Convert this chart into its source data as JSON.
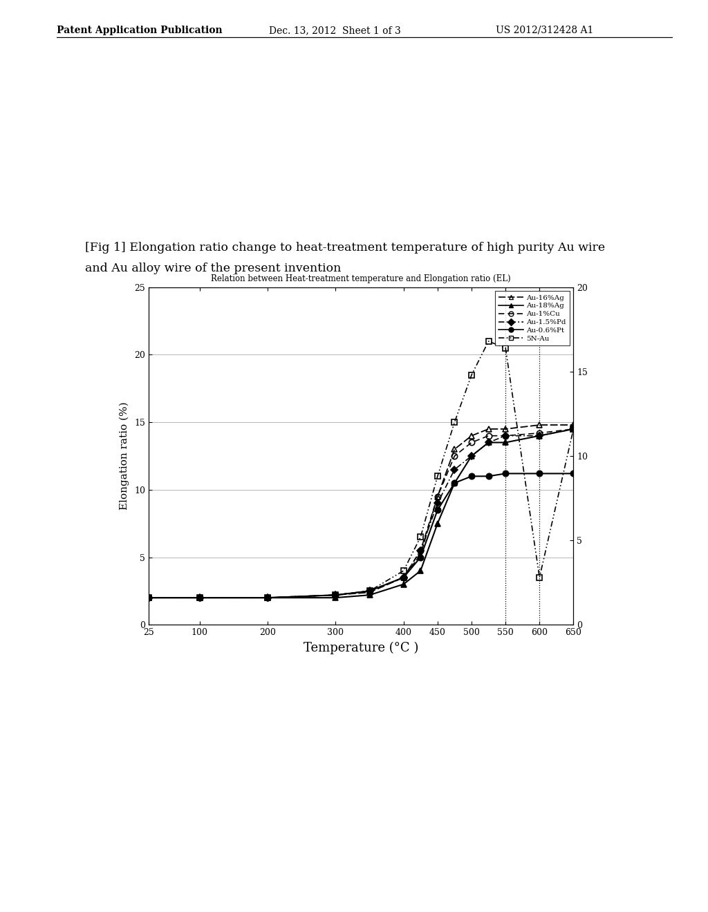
{
  "title": "Relation between Heat-treatment temperature and Elongation ratio (EL)",
  "xlabel": "Temperature (°C )",
  "ylabel": "Elongation ratio (%)",
  "fig_label_line1": "[Fig 1] Elongation ratio change to heat-treatment temperature of high purity Au wire",
  "fig_label_line2": "and Au alloy wire of the present invention",
  "header_left": "Patent Application Publication",
  "header_date": "Dec. 13, 2012  Sheet 1 of 3",
  "header_right": "US 2012/312428 A1",
  "xlim": [
    25,
    650
  ],
  "ylim_left": [
    0,
    25
  ],
  "ylim_right": [
    0,
    20
  ],
  "xticks": [
    25,
    100,
    200,
    300,
    400,
    450,
    500,
    550,
    600,
    650
  ],
  "yticks_left": [
    0,
    5,
    10,
    15,
    20,
    25
  ],
  "yticks_right": [
    0,
    5,
    10,
    15,
    20
  ],
  "vlines": [
    550,
    600
  ],
  "series": [
    {
      "label": "Au-16%Ag",
      "marker": "^",
      "fillstyle": "none",
      "linestyle_key": "solid_dash",
      "x": [
        25,
        100,
        200,
        300,
        350,
        400,
        425,
        450,
        475,
        500,
        525,
        550,
        600,
        650
      ],
      "y": [
        2.0,
        2.0,
        2.0,
        2.2,
        2.4,
        3.5,
        5.2,
        9.5,
        13.0,
        14.0,
        14.5,
        14.5,
        14.8,
        14.8
      ]
    },
    {
      "label": "Au-18%Ag",
      "marker": "^",
      "fillstyle": "full",
      "linestyle_key": "solid",
      "x": [
        25,
        100,
        200,
        300,
        350,
        400,
        425,
        450,
        475,
        500,
        525,
        550,
        600,
        650
      ],
      "y": [
        2.0,
        2.0,
        2.0,
        2.0,
        2.2,
        3.0,
        4.0,
        7.5,
        10.5,
        12.5,
        13.5,
        13.5,
        14.0,
        14.5
      ]
    },
    {
      "label": "Au-1%Cu",
      "marker": "o",
      "fillstyle": "none",
      "linestyle_key": "dashed",
      "x": [
        25,
        100,
        200,
        300,
        350,
        400,
        425,
        450,
        475,
        500,
        525,
        550,
        600,
        650
      ],
      "y": [
        2.0,
        2.0,
        2.0,
        2.2,
        2.5,
        3.5,
        5.5,
        9.5,
        12.5,
        13.5,
        14.0,
        14.0,
        14.2,
        14.5
      ]
    },
    {
      "label": "Au-1.5%Pd",
      "marker": "D",
      "fillstyle": "full",
      "linestyle_key": "dashdot",
      "x": [
        25,
        100,
        200,
        300,
        350,
        400,
        425,
        450,
        475,
        500,
        525,
        550,
        600,
        650
      ],
      "y": [
        2.0,
        2.0,
        2.0,
        2.2,
        2.5,
        3.5,
        5.5,
        9.0,
        11.5,
        12.5,
        13.5,
        14.0,
        14.0,
        14.5
      ]
    },
    {
      "label": "Au-0.6%Pt",
      "marker": "o",
      "fillstyle": "full",
      "linestyle_key": "solid",
      "x": [
        25,
        100,
        200,
        300,
        350,
        400,
        425,
        450,
        475,
        500,
        525,
        550,
        600,
        650
      ],
      "y": [
        2.0,
        2.0,
        2.0,
        2.2,
        2.5,
        3.5,
        5.0,
        8.5,
        10.5,
        11.0,
        11.0,
        11.2,
        11.2,
        11.2
      ]
    },
    {
      "label": "5N-Au",
      "marker": "s",
      "fillstyle": "none",
      "linestyle_key": "dashdotdot",
      "x": [
        25,
        100,
        200,
        300,
        350,
        400,
        425,
        450,
        475,
        500,
        525,
        550,
        600,
        650
      ],
      "y": [
        2.0,
        2.0,
        2.0,
        2.2,
        2.5,
        4.0,
        6.5,
        11.0,
        15.0,
        18.5,
        21.0,
        20.5,
        3.5,
        14.5
      ]
    }
  ]
}
